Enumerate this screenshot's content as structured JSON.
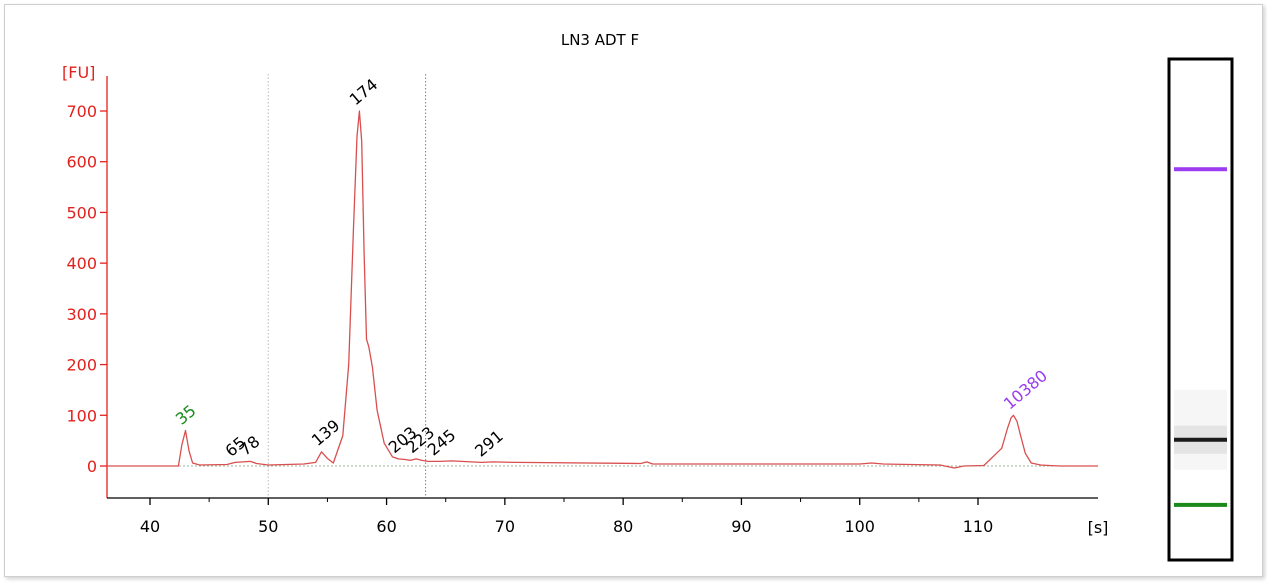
{
  "chart_data": {
    "type": "line",
    "title": "LN3 ADT F",
    "ylabel": "[FU]",
    "xlabel": "[s]",
    "xlim": [
      36,
      114
    ],
    "ylim": [
      -65,
      760
    ],
    "xticks": [
      40,
      50,
      60,
      70,
      80,
      90,
      100,
      110
    ],
    "yticks": [
      0,
      100,
      200,
      300,
      400,
      500,
      600,
      700
    ],
    "vlines": [
      50,
      63.3
    ],
    "colors": {
      "trace": "#d94f4f",
      "axis": "#e4201c",
      "marker_label": "#1b8a1b",
      "upper_marker_label": "#9b3cf0",
      "peak_label": "#000000"
    },
    "series": [
      {
        "x": [
          36,
          42.4,
          42.7,
          43.0,
          43.3,
          43.6,
          44.2,
          46.5,
          47.2,
          48.5,
          49.0,
          50.0,
          51.5,
          53.0,
          54.0,
          54.5,
          55.0,
          55.5,
          56.3,
          56.8,
          57.2,
          57.5,
          57.7,
          57.9,
          58.1,
          58.3,
          58.5,
          58.8,
          59.2,
          59.8,
          60.5,
          61.0,
          61.5,
          62.0,
          62.5,
          63.0,
          63.5,
          64.5,
          65.5,
          68.0,
          69.0,
          71.0,
          81.5,
          82.0,
          82.5,
          100.0,
          101.0,
          102.0,
          106.8,
          108.0,
          108.8,
          110.5,
          112.0,
          112.5,
          112.8,
          113.0,
          113.3,
          113.6,
          114.0,
          114.5,
          115.3,
          116.0,
          117.0,
          122.0
        ],
        "values": [
          0,
          0,
          42,
          70,
          30,
          6,
          2,
          3,
          7,
          9,
          5,
          2,
          3,
          4,
          7,
          28,
          15,
          6,
          60,
          200,
          470,
          650,
          700,
          640,
          420,
          250,
          235,
          195,
          110,
          45,
          18,
          14,
          13,
          11,
          14,
          11,
          9,
          9,
          10,
          7,
          8,
          7,
          5,
          8,
          4,
          4,
          6,
          4,
          2,
          -4,
          0,
          1,
          35,
          75,
          95,
          100,
          88,
          60,
          25,
          6,
          2,
          1,
          0,
          0
        ]
      }
    ],
    "peak_labels": [
      {
        "x": 43.0,
        "y": 70,
        "text": "35",
        "color": "marker_label"
      },
      {
        "x": 47.2,
        "y": 7,
        "text": "65",
        "color": "peak_label"
      },
      {
        "x": 48.4,
        "y": 9,
        "text": "78",
        "color": "peak_label"
      },
      {
        "x": 54.5,
        "y": 28,
        "text": "139",
        "color": "peak_label"
      },
      {
        "x": 57.7,
        "y": 700,
        "text": "174",
        "color": "peak_label"
      },
      {
        "x": 61.0,
        "y": 14,
        "text": "203",
        "color": "peak_label"
      },
      {
        "x": 62.5,
        "y": 14,
        "text": "223",
        "color": "peak_label"
      },
      {
        "x": 64.3,
        "y": 9,
        "text": "245",
        "color": "peak_label"
      },
      {
        "x": 68.3,
        "y": 7,
        "text": "291",
        "color": "peak_label"
      },
      {
        "x": 113.0,
        "y": 100,
        "text": "10380",
        "color": "upper_marker_label"
      }
    ]
  },
  "gel": {
    "bands": [
      {
        "color": "#9b3cf0",
        "level": 0.22
      },
      {
        "color": "#1a1a1a",
        "level": 0.76
      },
      {
        "color": "#1b8a1b",
        "level": 0.89
      }
    ]
  }
}
